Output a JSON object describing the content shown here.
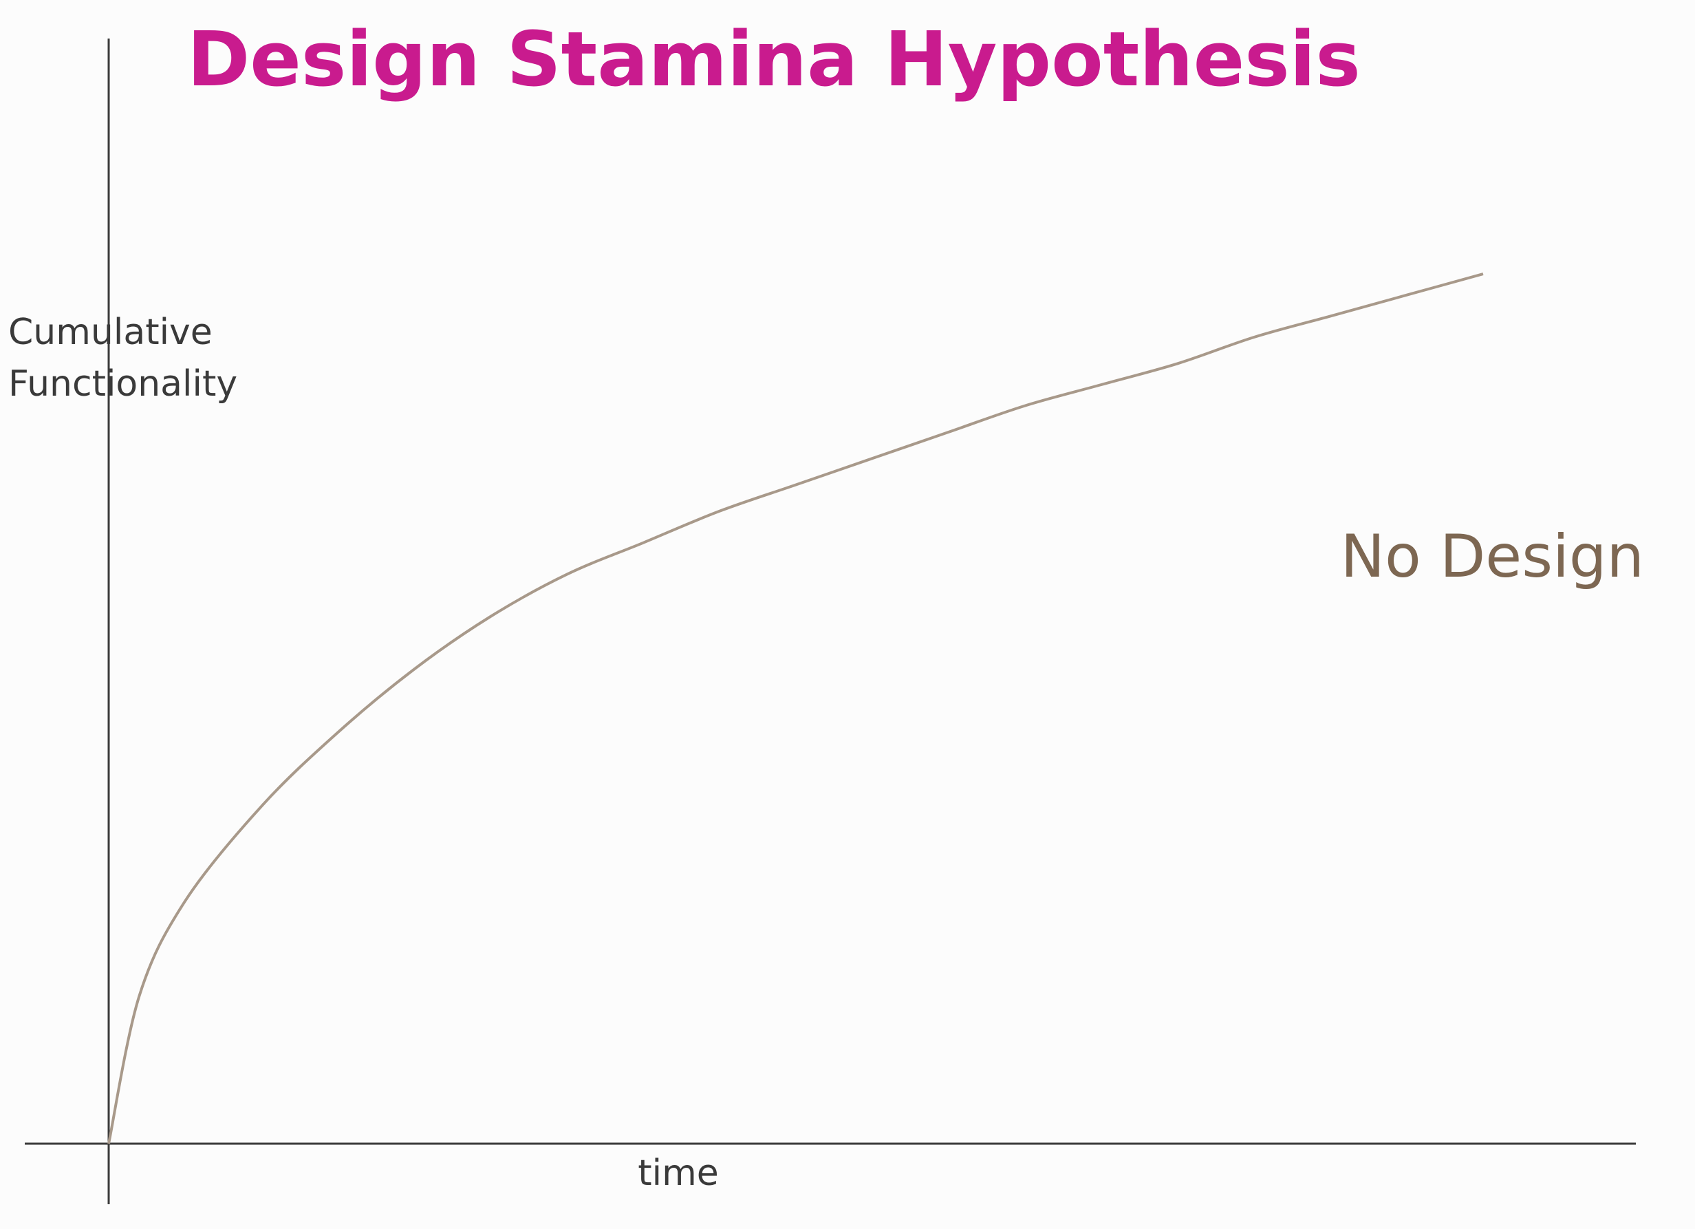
{
  "chart_data": {
    "type": "line",
    "title": "Design Stamina Hypothesis",
    "xlabel": "time",
    "ylabel": [
      "Cumulative",
      "Functionality"
    ],
    "xlim": [
      0,
      1
    ],
    "ylim": [
      0,
      1
    ],
    "grid": false,
    "legend": "none",
    "series": [
      {
        "name": "No Design",
        "color": "#a8998a",
        "label_color": "#7d6752",
        "x": [
          0,
          0.02,
          0.05,
          0.1,
          0.15,
          0.2,
          0.25,
          0.3,
          0.35,
          0.4,
          0.45,
          0.5,
          0.55,
          0.6,
          0.65,
          0.7,
          0.75,
          0.8,
          0.85,
          0.9
        ],
        "values": [
          0,
          0.14,
          0.23,
          0.32,
          0.39,
          0.45,
          0.5,
          0.54,
          0.57,
          0.6,
          0.625,
          0.65,
          0.675,
          0.7,
          0.72,
          0.74,
          0.765,
          0.785,
          0.805,
          0.825
        ]
      }
    ]
  },
  "colors": {
    "title": "#c91b8e",
    "axis": "#3a3a3a",
    "axis_label": "#3a3a3a",
    "background": "#fcfcfc"
  }
}
